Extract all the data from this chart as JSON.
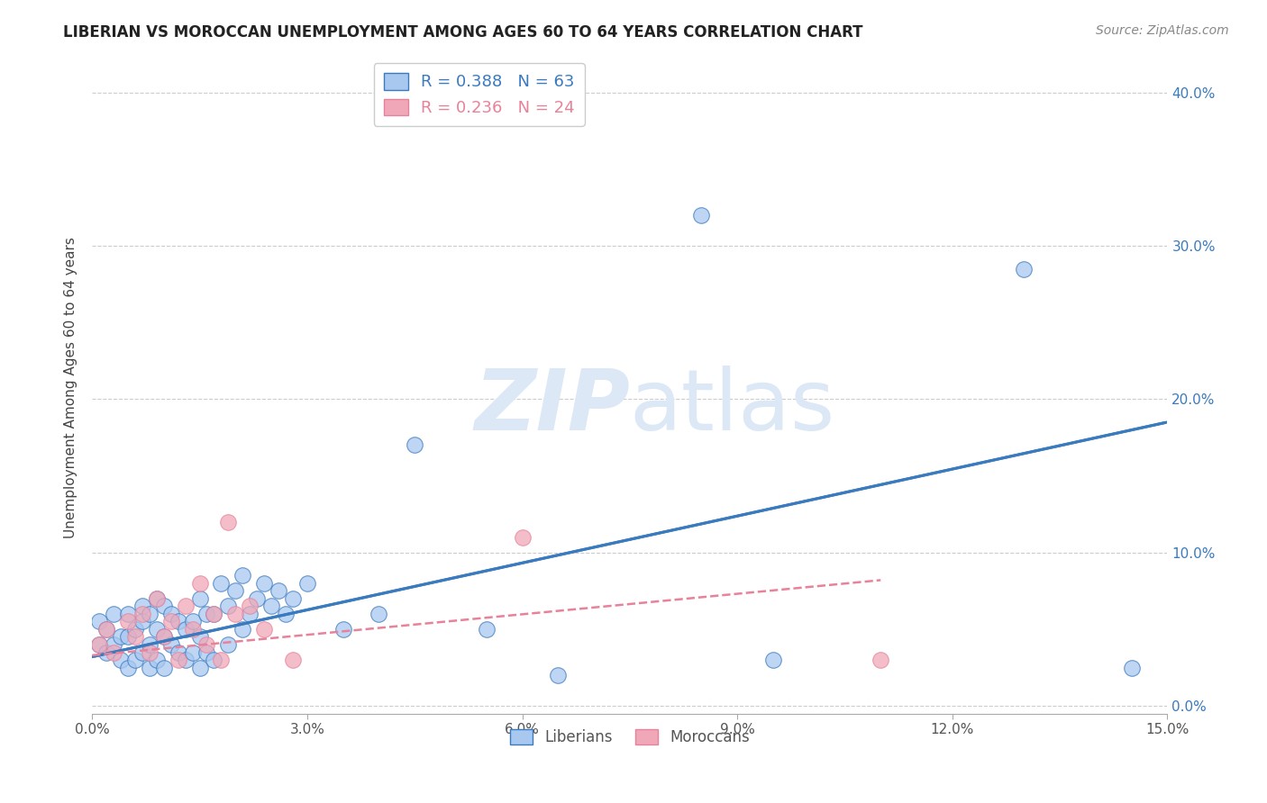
{
  "title": "LIBERIAN VS MOROCCAN UNEMPLOYMENT AMONG AGES 60 TO 64 YEARS CORRELATION CHART",
  "source": "Source: ZipAtlas.com",
  "ylabel": "Unemployment Among Ages 60 to 64 years",
  "xlim": [
    0.0,
    0.15
  ],
  "ylim": [
    -0.005,
    0.42
  ],
  "xticks": [
    0.0,
    0.03,
    0.06,
    0.09,
    0.12,
    0.15
  ],
  "yticks": [
    0.0,
    0.1,
    0.2,
    0.3,
    0.4
  ],
  "liberian_R": 0.388,
  "liberian_N": 63,
  "moroccan_R": 0.236,
  "moroccan_N": 24,
  "liberian_color": "#a8c8f0",
  "moroccan_color": "#f0a8b8",
  "liberian_line_color": "#3a7abf",
  "moroccan_line_color": "#e8829a",
  "background_color": "#ffffff",
  "watermark_color": "#dce8f5",
  "liberian_x": [
    0.001,
    0.001,
    0.002,
    0.002,
    0.003,
    0.003,
    0.004,
    0.004,
    0.005,
    0.005,
    0.005,
    0.006,
    0.006,
    0.007,
    0.007,
    0.007,
    0.008,
    0.008,
    0.008,
    0.009,
    0.009,
    0.009,
    0.01,
    0.01,
    0.01,
    0.011,
    0.011,
    0.012,
    0.012,
    0.013,
    0.013,
    0.014,
    0.014,
    0.015,
    0.015,
    0.015,
    0.016,
    0.016,
    0.017,
    0.017,
    0.018,
    0.019,
    0.019,
    0.02,
    0.021,
    0.021,
    0.022,
    0.023,
    0.024,
    0.025,
    0.026,
    0.027,
    0.028,
    0.03,
    0.035,
    0.04,
    0.045,
    0.055,
    0.065,
    0.085,
    0.095,
    0.13,
    0.145
  ],
  "liberian_y": [
    0.04,
    0.055,
    0.035,
    0.05,
    0.04,
    0.06,
    0.03,
    0.045,
    0.025,
    0.045,
    0.06,
    0.03,
    0.05,
    0.035,
    0.055,
    0.065,
    0.025,
    0.04,
    0.06,
    0.03,
    0.05,
    0.07,
    0.025,
    0.045,
    0.065,
    0.04,
    0.06,
    0.035,
    0.055,
    0.03,
    0.05,
    0.035,
    0.055,
    0.025,
    0.045,
    0.07,
    0.035,
    0.06,
    0.03,
    0.06,
    0.08,
    0.04,
    0.065,
    0.075,
    0.05,
    0.085,
    0.06,
    0.07,
    0.08,
    0.065,
    0.075,
    0.06,
    0.07,
    0.08,
    0.05,
    0.06,
    0.17,
    0.05,
    0.02,
    0.32,
    0.03,
    0.285,
    0.025
  ],
  "moroccan_x": [
    0.001,
    0.002,
    0.003,
    0.005,
    0.006,
    0.007,
    0.008,
    0.009,
    0.01,
    0.011,
    0.012,
    0.013,
    0.014,
    0.015,
    0.016,
    0.017,
    0.018,
    0.019,
    0.02,
    0.022,
    0.024,
    0.028,
    0.06,
    0.11
  ],
  "moroccan_y": [
    0.04,
    0.05,
    0.035,
    0.055,
    0.045,
    0.06,
    0.035,
    0.07,
    0.045,
    0.055,
    0.03,
    0.065,
    0.05,
    0.08,
    0.04,
    0.06,
    0.03,
    0.12,
    0.06,
    0.065,
    0.05,
    0.03,
    0.11,
    0.03
  ],
  "lib_line_x0": 0.0,
  "lib_line_y0": 0.032,
  "lib_line_x1": 0.15,
  "lib_line_y1": 0.185,
  "mor_line_x0": 0.0,
  "mor_line_y0": 0.033,
  "mor_line_x1": 0.11,
  "mor_line_y1": 0.082
}
